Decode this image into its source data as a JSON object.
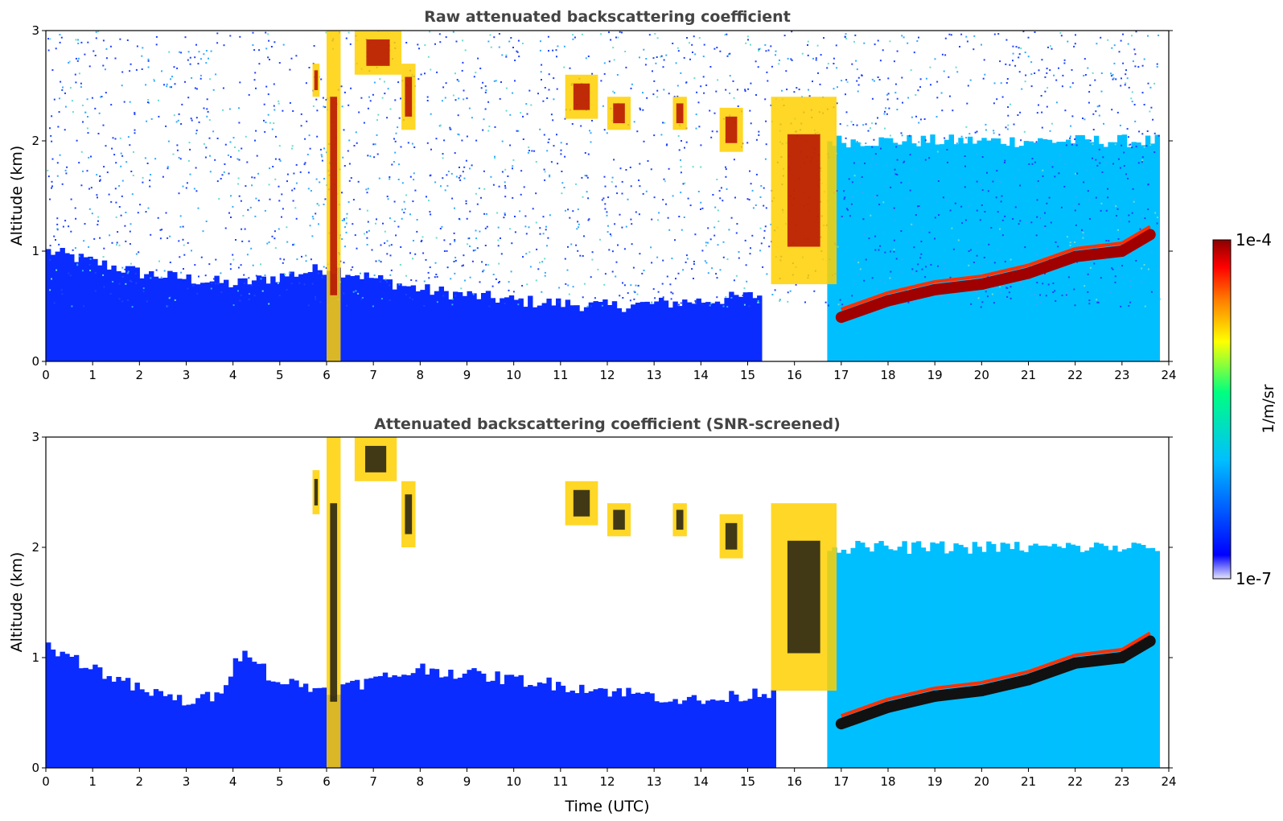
{
  "chart_data": [
    {
      "type": "heatmap",
      "title": "Raw attenuated backscattering coefficient",
      "xlabel": "",
      "ylabel": "Altitude (km)",
      "xlim": [
        0,
        24
      ],
      "ylim": [
        0,
        3
      ],
      "xticks": [
        "0",
        "1",
        "2",
        "3",
        "4",
        "5",
        "6",
        "7",
        "8",
        "9",
        "10",
        "11",
        "12",
        "13",
        "14",
        "15",
        "16",
        "17",
        "18",
        "19",
        "20",
        "21",
        "22",
        "23",
        "24"
      ],
      "yticks": [
        "0",
        "1",
        "2",
        "3"
      ],
      "boundary_layer_top_km": [
        {
          "t": 0,
          "z": 1.0
        },
        {
          "t": 2,
          "z": 0.8
        },
        {
          "t": 4,
          "z": 0.7
        },
        {
          "t": 6,
          "z": 0.85
        },
        {
          "t": 8,
          "z": 0.65
        },
        {
          "t": 10,
          "z": 0.55
        },
        {
          "t": 12,
          "z": 0.5
        },
        {
          "t": 14,
          "z": 0.55
        },
        {
          "t": 15.2,
          "z": 0.6
        }
      ],
      "elevated_layer_km": [
        {
          "t": 17.0,
          "z": 0.4
        },
        {
          "t": 18.0,
          "z": 0.55
        },
        {
          "t": 19.0,
          "z": 0.65
        },
        {
          "t": 20.0,
          "z": 0.7
        },
        {
          "t": 21.0,
          "z": 0.8
        },
        {
          "t": 22.0,
          "z": 0.95
        },
        {
          "t": 23.0,
          "z": 1.0
        },
        {
          "t": 23.6,
          "z": 1.15
        }
      ],
      "cloud_patches": [
        {
          "t0": 5.7,
          "t1": 5.85,
          "z0": 2.4,
          "z1": 2.7
        },
        {
          "t0": 6.0,
          "t1": 6.3,
          "z0": 0.0,
          "z1": 3.0
        },
        {
          "t0": 6.6,
          "t1": 7.6,
          "z0": 2.6,
          "z1": 3.0
        },
        {
          "t0": 7.6,
          "t1": 7.9,
          "z0": 2.1,
          "z1": 2.7
        },
        {
          "t0": 11.1,
          "t1": 11.8,
          "z0": 2.2,
          "z1": 2.6
        },
        {
          "t0": 12.0,
          "t1": 12.5,
          "z0": 2.1,
          "z1": 2.4
        },
        {
          "t0": 13.4,
          "t1": 13.7,
          "z0": 2.1,
          "z1": 2.4
        },
        {
          "t0": 14.4,
          "t1": 14.9,
          "z0": 1.9,
          "z1": 2.3
        },
        {
          "t0": 15.5,
          "t1": 16.9,
          "z0": 0.7,
          "z1": 2.4
        }
      ],
      "colorbar": {
        "label": "1/m/sr",
        "min_label": "1e-7",
        "max_label": "1e-4",
        "scale": "log"
      },
      "colormap": [
        "#e6e6fa",
        "#0000ff",
        "#00bfff",
        "#00ff80",
        "#ffff00",
        "#ff8000",
        "#ff0000",
        "#8b0000"
      ]
    },
    {
      "type": "heatmap",
      "title": "Attenuated backscattering coefficient (SNR-screened)",
      "xlabel": "Time (UTC)",
      "ylabel": "Altitude (km)",
      "xlim": [
        0,
        24
      ],
      "ylim": [
        0,
        3
      ],
      "xticks": [
        "0",
        "1",
        "2",
        "3",
        "4",
        "5",
        "6",
        "7",
        "8",
        "9",
        "10",
        "11",
        "12",
        "13",
        "14",
        "15",
        "16",
        "17",
        "18",
        "19",
        "20",
        "21",
        "22",
        "23",
        "24"
      ],
      "yticks": [
        "0",
        "1",
        "2",
        "3"
      ],
      "boundary_layer_top_km": [
        {
          "t": 0,
          "z": 1.1
        },
        {
          "t": 1,
          "z": 0.9
        },
        {
          "t": 2,
          "z": 0.7
        },
        {
          "t": 3,
          "z": 0.6
        },
        {
          "t": 3.6,
          "z": 0.65
        },
        {
          "t": 4.2,
          "z": 1.1
        },
        {
          "t": 4.8,
          "z": 0.8
        },
        {
          "t": 6,
          "z": 0.7
        },
        {
          "t": 8,
          "z": 0.9
        },
        {
          "t": 10,
          "z": 0.8
        },
        {
          "t": 12,
          "z": 0.7
        },
        {
          "t": 14,
          "z": 0.6
        },
        {
          "t": 15.5,
          "z": 0.7
        }
      ],
      "elevated_layer_km": [
        {
          "t": 17.0,
          "z": 0.4
        },
        {
          "t": 18.0,
          "z": 0.55
        },
        {
          "t": 19.0,
          "z": 0.65
        },
        {
          "t": 20.0,
          "z": 0.7
        },
        {
          "t": 21.0,
          "z": 0.8
        },
        {
          "t": 22.0,
          "z": 0.95
        },
        {
          "t": 23.0,
          "z": 1.0
        },
        {
          "t": 23.6,
          "z": 1.15
        }
      ],
      "cloud_patches": [
        {
          "t0": 5.7,
          "t1": 5.85,
          "z0": 2.3,
          "z1": 2.7
        },
        {
          "t0": 6.0,
          "t1": 6.3,
          "z0": 0.0,
          "z1": 3.0
        },
        {
          "t0": 6.6,
          "t1": 7.5,
          "z0": 2.6,
          "z1": 3.0
        },
        {
          "t0": 7.6,
          "t1": 7.9,
          "z0": 2.0,
          "z1": 2.6
        },
        {
          "t0": 11.1,
          "t1": 11.8,
          "z0": 2.2,
          "z1": 2.6
        },
        {
          "t0": 12.0,
          "t1": 12.5,
          "z0": 2.1,
          "z1": 2.4
        },
        {
          "t0": 13.4,
          "t1": 13.7,
          "z0": 2.1,
          "z1": 2.4
        },
        {
          "t0": 14.4,
          "t1": 14.9,
          "z0": 1.9,
          "z1": 2.3
        },
        {
          "t0": 15.5,
          "t1": 16.9,
          "z0": 0.7,
          "z1": 2.4
        }
      ],
      "colorbar": {
        "label": "1/m/sr",
        "min_label": "1e-7",
        "max_label": "1e-4",
        "scale": "log"
      },
      "colormap": [
        "#e6e6fa",
        "#0000ff",
        "#00bfff",
        "#00ff80",
        "#ffff00",
        "#ff8000",
        "#ff0000",
        "#8b0000"
      ]
    }
  ]
}
